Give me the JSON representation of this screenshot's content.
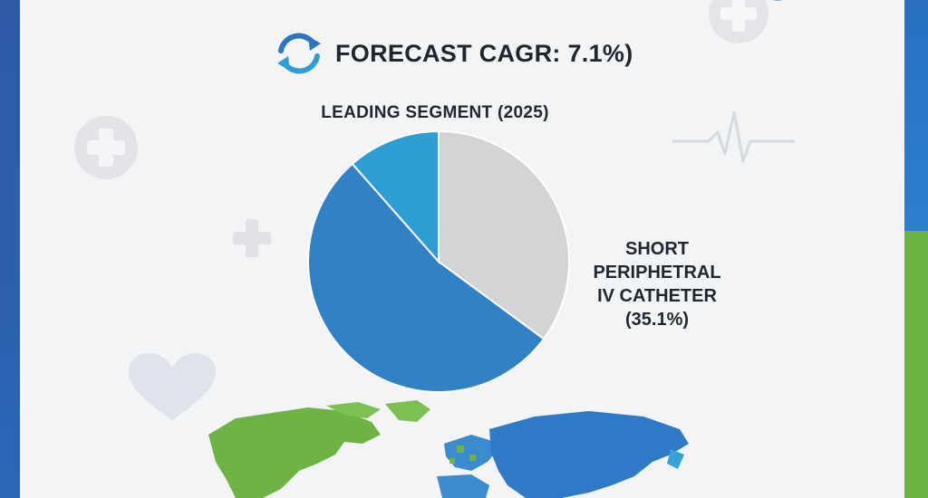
{
  "header": {
    "title": "FORECAST CAGR: 7.1%)",
    "refresh_icon": "refresh-cycle-icon"
  },
  "chart_data": {
    "type": "pie",
    "title": "LEADING SEGMENT (2025)",
    "slices": [
      {
        "label": "SHORT PERIPHETRAL IV CATHETER (35.1%)",
        "value": 35.1,
        "color": "#d3d4d6"
      },
      {
        "value": 53.4,
        "color": "#3181c4"
      },
      {
        "value": 11.5,
        "color": "#2f9ed4"
      }
    ],
    "annotation_lines": [
      "SHORT",
      "PERIPHETRAL",
      "IV CATHETER",
      "(35.1%)"
    ]
  },
  "decorations": {
    "icons": [
      "medical-cross-icon",
      "heartbeat-line-icon",
      "heart-icon",
      "world-map-icon"
    ]
  },
  "colors": {
    "accent_blue": "#2f6fba",
    "accent_green": "#6db33f"
  }
}
